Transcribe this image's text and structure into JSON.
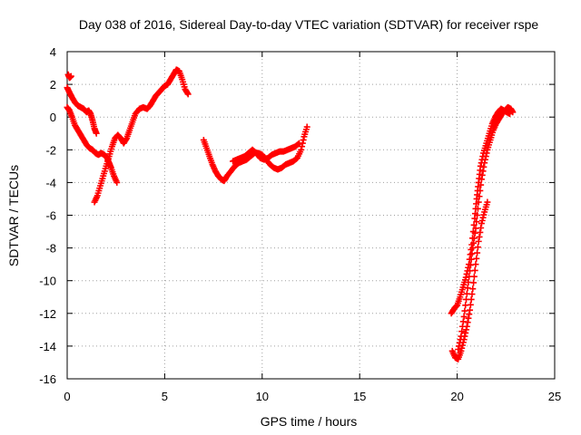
{
  "chart_data": {
    "type": "scatter",
    "title": "Day 038 of 2016, Sidereal Day-to-day VTEC variation (SDTVAR) for receiver rspe",
    "xlabel": "GPS time / hours",
    "ylabel": "SDTVAR / TECUs",
    "xlim": [
      0,
      25
    ],
    "ylim": [
      -16,
      4
    ],
    "xticks": [
      "0",
      "5",
      "10",
      "15",
      "20",
      "25"
    ],
    "yticks": [
      "4",
      "2",
      "0",
      "-2",
      "-4",
      "-6",
      "-8",
      "-10",
      "-12",
      "-14",
      "-16"
    ],
    "grid": true,
    "marker": "+",
    "color": "#ff0000",
    "series": [
      {
        "segments": [
          [
            [
              0.0,
              0.6
            ],
            [
              0.12,
              0.4
            ],
            [
              0.25,
              0.0
            ],
            [
              0.4,
              -0.5
            ],
            [
              0.55,
              -0.8
            ],
            [
              0.7,
              -1.1
            ],
            [
              0.85,
              -1.4
            ],
            [
              1.0,
              -1.7
            ],
            [
              1.15,
              -1.9
            ],
            [
              1.3,
              -2.0
            ],
            [
              1.45,
              -2.2
            ],
            [
              1.6,
              -2.3
            ],
            [
              1.75,
              -2.2
            ],
            [
              1.9,
              -2.3
            ],
            [
              2.05,
              -2.5
            ],
            [
              2.15,
              -2.8
            ],
            [
              2.25,
              -3.1
            ],
            [
              2.4,
              -3.6
            ],
            [
              2.55,
              -4.0
            ]
          ],
          [
            [
              0.0,
              1.8
            ],
            [
              0.12,
              1.5
            ],
            [
              0.25,
              1.2
            ],
            [
              0.4,
              0.9
            ],
            [
              0.55,
              0.7
            ],
            [
              0.7,
              0.6
            ],
            [
              0.85,
              0.5
            ],
            [
              1.0,
              0.3
            ],
            [
              1.1,
              0.4
            ],
            [
              1.2,
              0.2
            ],
            [
              1.3,
              -0.2
            ],
            [
              1.4,
              -0.7
            ],
            [
              1.5,
              -1.0
            ]
          ],
          [
            [
              0.05,
              2.6
            ],
            [
              0.12,
              2.4
            ],
            [
              0.2,
              2.5
            ]
          ],
          [
            [
              1.4,
              -5.2
            ],
            [
              1.55,
              -4.8
            ],
            [
              1.7,
              -4.2
            ],
            [
              1.85,
              -3.6
            ],
            [
              2.0,
              -3.0
            ],
            [
              2.15,
              -2.4
            ],
            [
              2.3,
              -1.8
            ],
            [
              2.45,
              -1.3
            ],
            [
              2.6,
              -1.1
            ],
            [
              2.75,
              -1.3
            ],
            [
              2.9,
              -1.6
            ],
            [
              3.05,
              -1.3
            ],
            [
              3.2,
              -0.8
            ],
            [
              3.35,
              -0.3
            ],
            [
              3.5,
              0.2
            ],
            [
              3.7,
              0.5
            ],
            [
              3.9,
              0.6
            ],
            [
              4.1,
              0.5
            ],
            [
              4.25,
              0.7
            ],
            [
              4.4,
              1.0
            ],
            [
              4.55,
              1.3
            ],
            [
              4.7,
              1.5
            ],
            [
              4.85,
              1.7
            ],
            [
              5.0,
              1.9
            ],
            [
              5.15,
              2.0
            ],
            [
              5.3,
              2.3
            ],
            [
              5.45,
              2.6
            ],
            [
              5.6,
              2.9
            ],
            [
              5.75,
              2.8
            ],
            [
              5.9,
              2.3
            ],
            [
              6.05,
              1.7
            ],
            [
              6.2,
              1.4
            ]
          ],
          [
            [
              7.0,
              -1.4
            ],
            [
              7.15,
              -1.9
            ],
            [
              7.3,
              -2.4
            ],
            [
              7.45,
              -2.9
            ],
            [
              7.6,
              -3.3
            ],
            [
              7.75,
              -3.6
            ],
            [
              7.9,
              -3.8
            ],
            [
              8.05,
              -3.9
            ],
            [
              8.2,
              -3.6
            ],
            [
              8.4,
              -3.3
            ],
            [
              8.6,
              -3.0
            ],
            [
              8.8,
              -2.8
            ],
            [
              9.0,
              -2.7
            ],
            [
              9.2,
              -2.6
            ],
            [
              9.4,
              -2.4
            ],
            [
              9.6,
              -2.2
            ],
            [
              9.8,
              -2.2
            ],
            [
              10.0,
              -2.3
            ],
            [
              10.2,
              -2.6
            ],
            [
              10.4,
              -2.9
            ],
            [
              10.6,
              -3.1
            ],
            [
              10.8,
              -3.2
            ],
            [
              11.0,
              -3.1
            ],
            [
              11.2,
              -2.9
            ],
            [
              11.4,
              -2.8
            ],
            [
              11.6,
              -2.7
            ],
            [
              11.8,
              -2.5
            ],
            [
              12.0,
              -2.0
            ],
            [
              12.15,
              -1.2
            ],
            [
              12.3,
              -0.6
            ]
          ],
          [
            [
              8.5,
              -2.7
            ],
            [
              8.7,
              -2.6
            ],
            [
              8.9,
              -2.5
            ],
            [
              9.1,
              -2.4
            ],
            [
              9.3,
              -2.2
            ],
            [
              9.5,
              -2.0
            ],
            [
              9.7,
              -2.2
            ],
            [
              9.9,
              -2.5
            ],
            [
              10.1,
              -2.6
            ],
            [
              10.3,
              -2.5
            ],
            [
              10.5,
              -2.3
            ],
            [
              10.7,
              -2.2
            ],
            [
              10.9,
              -2.1
            ],
            [
              11.1,
              -2.1
            ],
            [
              11.3,
              -2.0
            ],
            [
              11.5,
              -1.9
            ],
            [
              11.7,
              -1.8
            ],
            [
              11.9,
              -1.6
            ]
          ],
          [
            [
              19.7,
              -12.0
            ],
            [
              19.85,
              -11.7
            ],
            [
              20.0,
              -11.5
            ],
            [
              20.15,
              -11.0
            ],
            [
              20.3,
              -10.4
            ],
            [
              20.45,
              -9.8
            ],
            [
              20.6,
              -9.0
            ],
            [
              20.75,
              -7.8
            ],
            [
              20.9,
              -6.2
            ],
            [
              21.0,
              -5.0
            ],
            [
              21.1,
              -4.0
            ],
            [
              21.2,
              -3.0
            ],
            [
              21.35,
              -2.2
            ],
            [
              21.5,
              -1.6
            ],
            [
              21.65,
              -1.0
            ],
            [
              21.8,
              -0.4
            ],
            [
              21.95,
              0.0
            ],
            [
              22.1,
              0.3
            ],
            [
              22.25,
              0.5
            ],
            [
              22.4,
              0.4
            ],
            [
              22.55,
              0.3
            ],
            [
              22.7,
              0.2
            ]
          ],
          [
            [
              19.75,
              -14.3
            ],
            [
              19.9,
              -14.7
            ],
            [
              20.05,
              -14.8
            ],
            [
              20.2,
              -14.3
            ],
            [
              20.35,
              -13.6
            ],
            [
              20.5,
              -12.8
            ],
            [
              20.65,
              -11.8
            ],
            [
              20.8,
              -10.5
            ],
            [
              20.95,
              -9.0
            ],
            [
              21.1,
              -7.6
            ],
            [
              21.25,
              -6.5
            ],
            [
              21.4,
              -5.8
            ],
            [
              21.55,
              -5.2
            ]
          ],
          [
            [
              20.05,
              -14.2
            ],
            [
              20.2,
              -13.4
            ],
            [
              20.35,
              -12.2
            ],
            [
              20.5,
              -10.8
            ],
            [
              20.65,
              -9.4
            ],
            [
              20.8,
              -8.0
            ],
            [
              20.95,
              -6.8
            ],
            [
              21.1,
              -5.2
            ],
            [
              21.25,
              -3.8
            ],
            [
              21.4,
              -2.8
            ],
            [
              21.55,
              -2.0
            ],
            [
              21.7,
              -1.4
            ],
            [
              21.85,
              -0.8
            ],
            [
              22.0,
              -0.4
            ],
            [
              22.15,
              -0.1
            ],
            [
              22.3,
              0.2
            ],
            [
              22.45,
              0.4
            ],
            [
              22.6,
              0.6
            ],
            [
              22.75,
              0.5
            ],
            [
              22.85,
              0.3
            ]
          ]
        ]
      }
    ]
  }
}
